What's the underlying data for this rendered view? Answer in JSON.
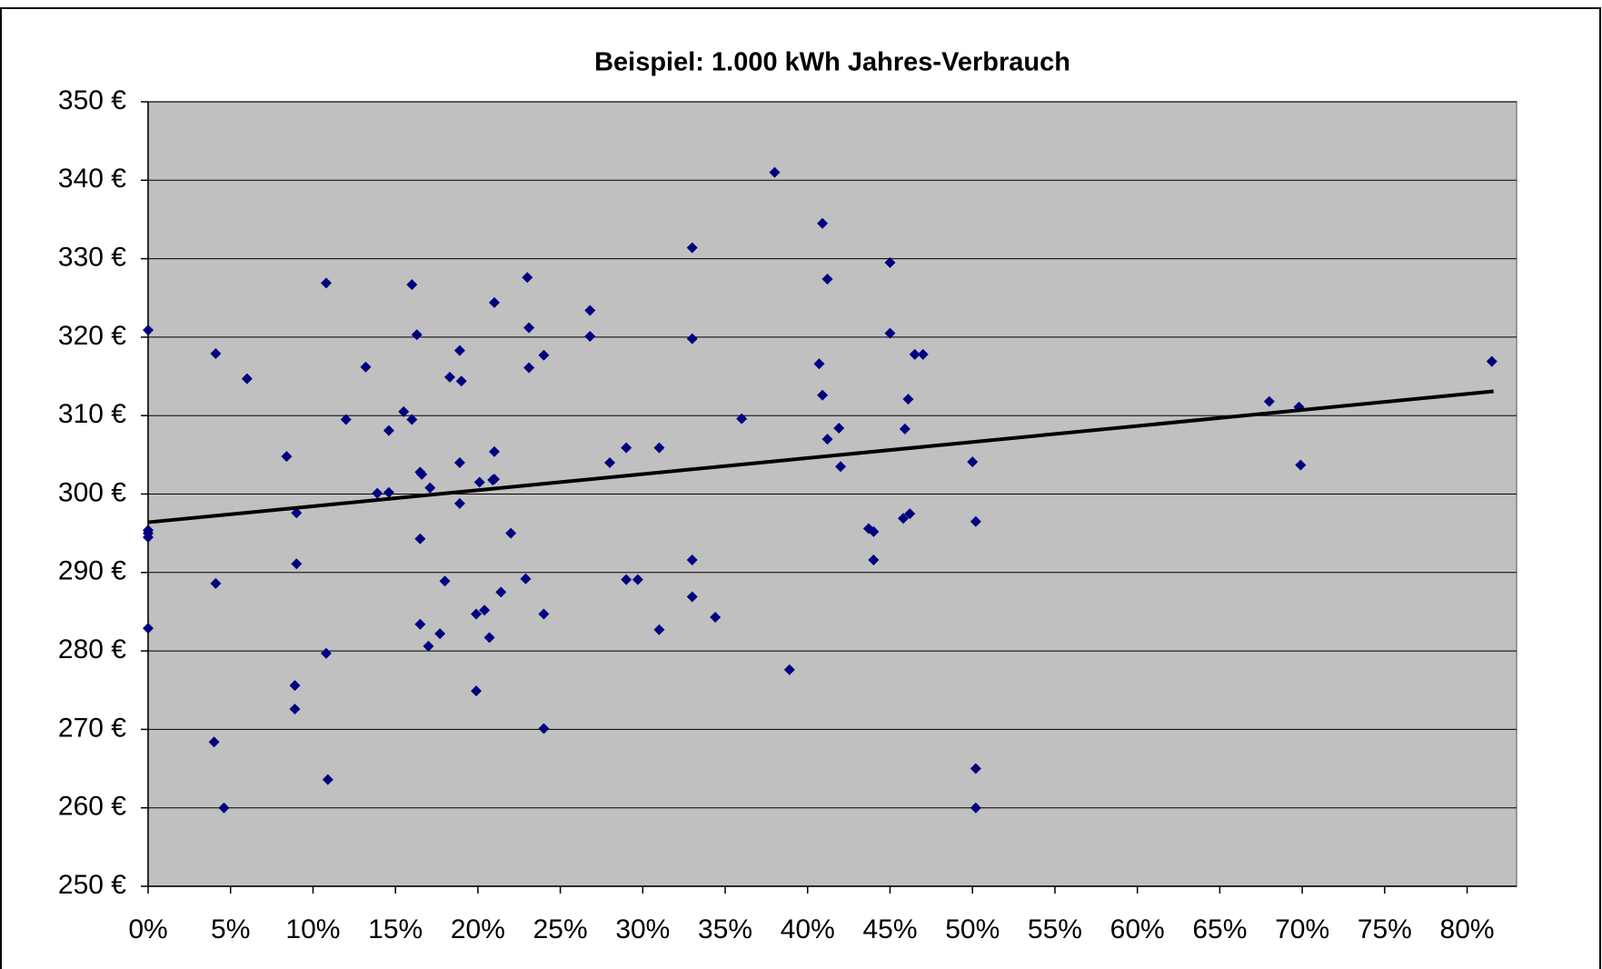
{
  "chart_data": {
    "type": "scatter",
    "title": "Beispiel: 1.000 kWh Jahres-Verbrauch",
    "xlim": [
      0,
      83
    ],
    "ylim": [
      250,
      350
    ],
    "xticks": [
      {
        "value": 0,
        "label": "0%"
      },
      {
        "value": 5,
        "label": "5%"
      },
      {
        "value": 10,
        "label": "10%"
      },
      {
        "value": 15,
        "label": "15%"
      },
      {
        "value": 20,
        "label": "20%"
      },
      {
        "value": 25,
        "label": "25%"
      },
      {
        "value": 30,
        "label": "30%"
      },
      {
        "value": 35,
        "label": "35%"
      },
      {
        "value": 40,
        "label": "40%"
      },
      {
        "value": 45,
        "label": "45%"
      },
      {
        "value": 50,
        "label": "50%"
      },
      {
        "value": 55,
        "label": "55%"
      },
      {
        "value": 60,
        "label": "60%"
      },
      {
        "value": 65,
        "label": "65%"
      },
      {
        "value": 70,
        "label": "70%"
      },
      {
        "value": 75,
        "label": "75%"
      },
      {
        "value": 80,
        "label": "80%"
      }
    ],
    "yticks": [
      {
        "value": 250,
        "label": "250 €"
      },
      {
        "value": 260,
        "label": "260 €"
      },
      {
        "value": 270,
        "label": "270 €"
      },
      {
        "value": 280,
        "label": "280 €"
      },
      {
        "value": 290,
        "label": "290 €"
      },
      {
        "value": 300,
        "label": "300 €"
      },
      {
        "value": 310,
        "label": "310 €"
      },
      {
        "value": 320,
        "label": "320 €"
      },
      {
        "value": 330,
        "label": "330 €"
      },
      {
        "value": 340,
        "label": "340 €"
      },
      {
        "value": 350,
        "label": "350 €"
      }
    ],
    "grid": true,
    "background": "#c0c0c0",
    "series": [
      {
        "color": "#000080",
        "x": [
          0,
          0,
          0,
          0,
          0,
          4.1,
          4.1,
          4.0,
          4.6,
          6.0,
          8.4,
          9.0,
          9.0,
          8.9,
          8.9,
          10.8,
          10.8,
          10.9,
          12.0,
          13.2,
          13.9,
          14.6,
          14.6,
          15.5,
          16.0,
          16.0,
          16.3,
          16.5,
          16.6,
          16.5,
          16.5,
          17.0,
          17.1,
          17.7,
          18.0,
          18.3,
          19.0,
          18.9,
          18.9,
          18.9,
          19.9,
          19.9,
          20.4,
          20.1,
          20.7,
          20.9,
          21.0,
          21.0,
          21.0,
          21.4,
          22.0,
          23.0,
          23.1,
          23.1,
          22.9,
          24.0,
          24.0,
          24.0,
          26.8,
          26.8,
          28.0,
          29.0,
          29.0,
          29.7,
          31.0,
          31.0,
          33.0,
          33.0,
          33.0,
          33.0,
          34.4,
          36.0,
          38.0,
          38.9,
          40.7,
          40.9,
          41.2,
          40.9,
          41.2,
          41.9,
          42.0,
          43.7,
          44.0,
          44.0,
          45.0,
          45.0,
          46.5,
          47.0,
          46.1,
          45.9,
          45.8,
          46.2,
          50.0,
          50.2,
          50.2,
          50.2,
          68.0,
          69.8,
          69.9,
          81.5
        ],
        "values": [
          320.9,
          295.4,
          295.0,
          294.5,
          282.9,
          317.9,
          288.6,
          268.4,
          260.0,
          314.7,
          304.8,
          297.6,
          291.1,
          275.6,
          272.6,
          326.9,
          279.7,
          263.6,
          309.5,
          316.2,
          300.1,
          300.2,
          308.1,
          310.5,
          309.5,
          326.7,
          320.3,
          302.8,
          302.5,
          294.3,
          283.4,
          280.6,
          300.8,
          282.2,
          288.9,
          314.9,
          314.4,
          318.3,
          304.0,
          298.8,
          274.9,
          284.7,
          285.2,
          301.5,
          281.7,
          301.8,
          301.9,
          305.4,
          324.4,
          287.5,
          295.0,
          327.6,
          321.2,
          316.1,
          289.2,
          317.7,
          284.7,
          270.1,
          323.4,
          320.1,
          304.0,
          305.9,
          289.1,
          289.1,
          305.9,
          282.7,
          331.4,
          319.8,
          291.6,
          286.9,
          284.3,
          309.6,
          341.0,
          277.6,
          316.6,
          334.5,
          327.4,
          312.6,
          307.0,
          308.4,
          303.5,
          295.6,
          295.2,
          291.6,
          329.5,
          320.5,
          317.8,
          317.8,
          312.1,
          308.3,
          296.9,
          297.5,
          304.1,
          296.5,
          265.0,
          260.0,
          311.8,
          311.1,
          303.7,
          316.9
        ]
      }
    ],
    "trendline": {
      "color": "#000000",
      "x": [
        0,
        81.6
      ],
      "values": [
        296.4,
        313.1
      ]
    }
  }
}
